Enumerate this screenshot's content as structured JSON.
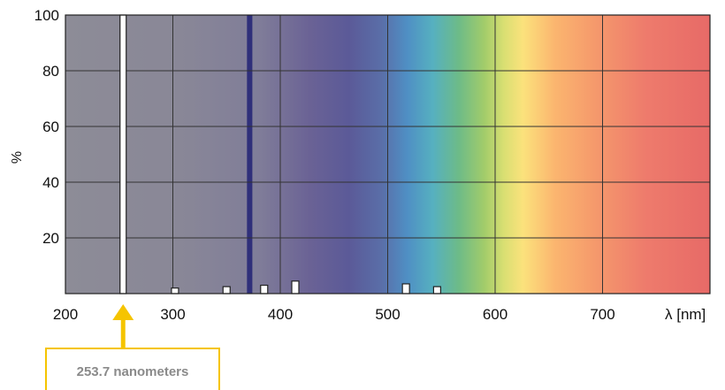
{
  "chart_data": {
    "type": "bar",
    "xlabel": "λ [nm]",
    "ylabel": "%",
    "xlim": [
      200,
      800
    ],
    "ylim": [
      0,
      100
    ],
    "xticks": [
      200,
      300,
      400,
      500,
      600,
      700
    ],
    "yticks": [
      20,
      40,
      60,
      80,
      100
    ],
    "grid": true,
    "background": "visible spectrum gradient (violet to red)",
    "series": [
      {
        "points": [
          {
            "x": 253.7,
            "y": 100
          },
          {
            "x": 302,
            "y": 2
          },
          {
            "x": 350,
            "y": 2.5
          },
          {
            "x": 385,
            "y": 3
          },
          {
            "x": 414,
            "y": 4.5
          },
          {
            "x": 517,
            "y": 3.5
          },
          {
            "x": 546,
            "y": 2.5
          }
        ]
      }
    ],
    "highlight_band": {
      "from": 369,
      "to": 374,
      "color": "#2f2f7a"
    },
    "annotation": {
      "text": "253.7 nanometers",
      "x": 253.7
    }
  },
  "colors": {
    "callout": "#f5c400",
    "bar_fill": "#ffffff",
    "bar_stroke": "#222222",
    "grid": "#333333"
  }
}
